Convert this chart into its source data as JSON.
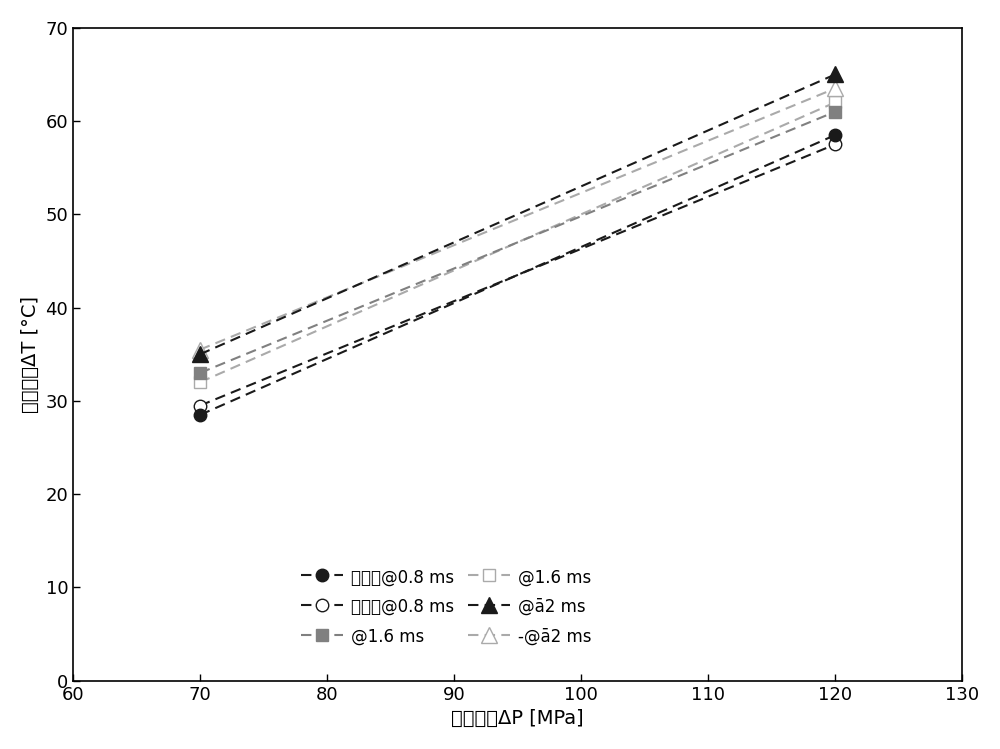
{
  "x": [
    70,
    120
  ],
  "exp_08": [
    28.5,
    58.5
  ],
  "exp_16": [
    33.0,
    61.0
  ],
  "exp_2": [
    35.0,
    65.0
  ],
  "calc_08": [
    29.5,
    57.5
  ],
  "calc_16": [
    32.0,
    62.0
  ],
  "calc_2": [
    35.5,
    63.5
  ],
  "xlabel": "燃油压降ΔP [MPa]",
  "ylabel": "稳态温升ΔT [°C]",
  "xlim": [
    60,
    130
  ],
  "ylim": [
    0,
    70
  ],
  "xticks": [
    60,
    70,
    80,
    90,
    100,
    110,
    120,
    130
  ],
  "yticks": [
    0,
    10,
    20,
    30,
    40,
    50,
    60,
    70
  ],
  "color_dark": "#1a1a1a",
  "color_gray": "#808080",
  "color_light_gray": "#aaaaaa",
  "background_color": "#ffffff",
  "linewidth": 1.5,
  "markersize": 9
}
